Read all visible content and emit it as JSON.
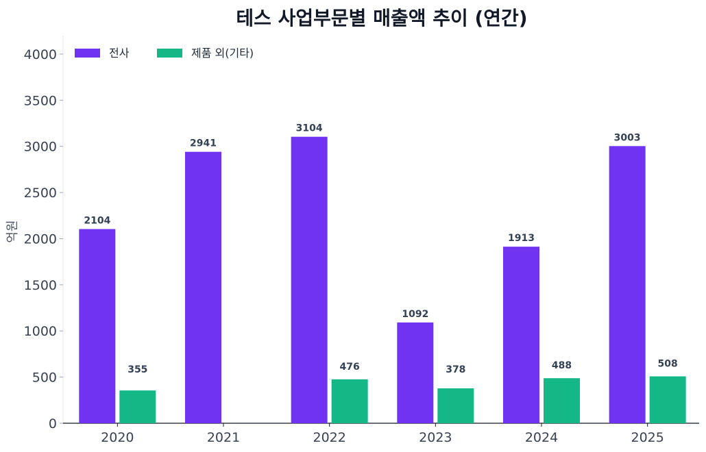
{
  "chart_data": {
    "type": "bar",
    "title": "테스 사업부문별 매출액 추이 (연간)",
    "xlabel": "",
    "ylabel": "억원",
    "categories": [
      "2020",
      "2021",
      "2022",
      "2023",
      "2024",
      "2025"
    ],
    "series": [
      {
        "name": "전사",
        "color": "#7133f2",
        "values": [
          2104,
          2941,
          3104,
          1092,
          1913,
          3003
        ]
      },
      {
        "name": "제품 외(기타)",
        "color": "#13b886",
        "values": [
          355,
          null,
          476,
          378,
          488,
          508
        ]
      }
    ],
    "ylim": [
      0,
      4200
    ],
    "yticks": [
      0,
      500,
      1000,
      1500,
      2000,
      2500,
      3000,
      3500,
      4000
    ],
    "grid": false,
    "legend_position": "top-left"
  }
}
